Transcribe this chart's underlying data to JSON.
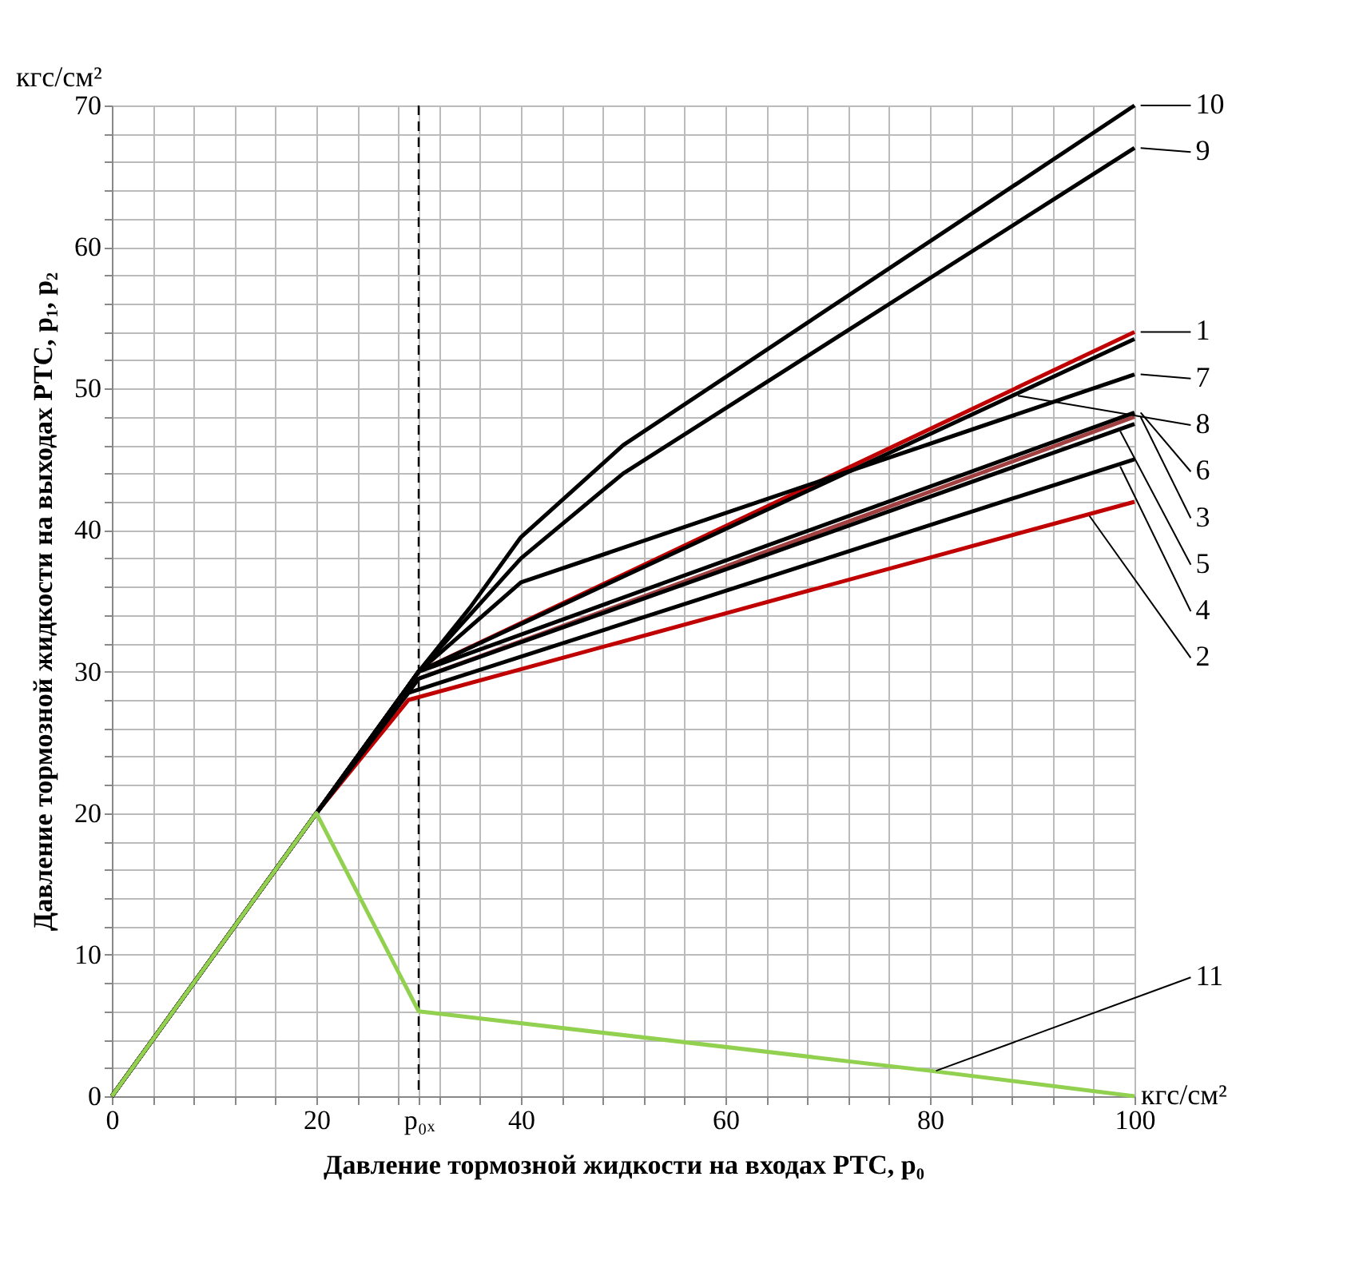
{
  "chart_data": {
    "type": "line",
    "xlabel": "Давление тормозной жидкости на входах РТС, p₀",
    "ylabel": "Давление тормозной жидкости на выходах РТС, p₁, p₂",
    "xlim": [
      0,
      100
    ],
    "ylim": [
      0,
      70
    ],
    "xticks": [
      0,
      {
        "value": 4,
        "label": null
      },
      {
        "value": 8,
        "label": null
      },
      {
        "value": 12,
        "label": null
      },
      {
        "value": 16,
        "label": null
      },
      20,
      {
        "value": 24,
        "label": null
      },
      {
        "value": 28,
        "label": null
      },
      {
        "value": 30,
        "label": "p₀ₓ"
      },
      {
        "value": 32,
        "label": null
      },
      {
        "value": 36,
        "label": null
      },
      40,
      {
        "value": 44,
        "label": null
      },
      {
        "value": 48,
        "label": null
      },
      {
        "value": 52,
        "label": null
      },
      {
        "value": 56,
        "label": null
      },
      60,
      {
        "value": 64,
        "label": null
      },
      {
        "value": 68,
        "label": null
      },
      {
        "value": 72,
        "label": null
      },
      {
        "value": 76,
        "label": null
      },
      80,
      {
        "value": 84,
        "label": null
      },
      {
        "value": 88,
        "label": null
      },
      {
        "value": 92,
        "label": null
      },
      {
        "value": 96,
        "label": null
      },
      100
    ],
    "yticks": [
      0,
      {
        "value": 2,
        "label": null
      },
      {
        "value": 4,
        "label": null
      },
      {
        "value": 6,
        "label": null
      },
      {
        "value": 8,
        "label": null
      },
      10,
      {
        "value": 12,
        "label": null
      },
      {
        "value": 14,
        "label": null
      },
      {
        "value": 16,
        "label": null
      },
      {
        "value": 18,
        "label": null
      },
      20,
      {
        "value": 22,
        "label": null
      },
      {
        "value": 24,
        "label": null
      },
      {
        "value": 26,
        "label": null
      },
      {
        "value": 28,
        "label": null
      },
      30,
      {
        "value": 32,
        "label": null
      },
      {
        "value": 34,
        "label": null
      },
      {
        "value": 36,
        "label": null
      },
      {
        "value": 38,
        "label": null
      },
      40,
      {
        "value": 42,
        "label": null
      },
      {
        "value": 44,
        "label": null
      },
      {
        "value": 46,
        "label": null
      },
      {
        "value": 48,
        "label": null
      },
      50,
      {
        "value": 52,
        "label": null
      },
      {
        "value": 54,
        "label": null
      },
      {
        "value": 56,
        "label": null
      },
      {
        "value": 58,
        "label": null
      },
      60,
      {
        "value": 62,
        "label": null
      },
      {
        "value": 64,
        "label": null
      },
      {
        "value": 66,
        "label": null
      },
      {
        "value": 68,
        "label": null
      },
      70
    ],
    "grid": true,
    "marker": "none",
    "line_style": "solid",
    "ref_lines": [
      {
        "axis": "x",
        "value": 30,
        "color": "#000000",
        "line_style": "dashed"
      }
    ],
    "annotations": [
      "кгс/см²",
      "кгс/см²",
      {
        "text": "10",
        "x": 100,
        "y": 70
      },
      {
        "text": "9",
        "x": 100,
        "y": 67
      },
      {
        "text": "8",
        "x": 88,
        "y": 49.5
      },
      {
        "text": "1",
        "x": 100,
        "y": 54
      },
      {
        "text": "7",
        "x": 100,
        "y": 51
      },
      {
        "text": "6",
        "x": 100,
        "y": 48.3
      },
      {
        "text": "3",
        "x": 100,
        "y": 48
      },
      {
        "text": "5",
        "x": 98,
        "y": 47
      },
      {
        "text": "4",
        "x": 98,
        "y": 44.5
      },
      {
        "text": "2",
        "x": 95,
        "y": 41
      },
      {
        "text": "11",
        "x": 80,
        "y": 1.8
      }
    ],
    "series": [
      {
        "color": "#c00000",
        "x": [
          0,
          20,
          30,
          100
        ],
        "values": [
          0,
          20,
          30,
          54
        ]
      },
      {
        "color": "#c00000",
        "x": [
          0,
          20,
          29,
          100
        ],
        "values": [
          0,
          20,
          28,
          42
        ]
      },
      {
        "color": "#a04040",
        "x": [
          0,
          20,
          30,
          100
        ],
        "values": [
          0,
          20,
          29.5,
          48
        ]
      },
      {
        "color": "#000000",
        "x": [
          0,
          20,
          29,
          100
        ],
        "values": [
          0,
          20,
          28.5,
          45
        ]
      },
      {
        "color": "#000000",
        "x": [
          0,
          20,
          30,
          100
        ],
        "values": [
          0,
          20,
          29.5,
          47.5
        ]
      },
      {
        "color": "#000000",
        "x": [
          0,
          20,
          30,
          100
        ],
        "values": [
          0,
          20,
          30,
          48.3
        ]
      },
      {
        "color": "#000000",
        "x": [
          0,
          20,
          30,
          40,
          100
        ],
        "values": [
          0,
          20,
          30,
          36.3,
          51
        ]
      },
      {
        "color": "#000000",
        "x": [
          0,
          20,
          30,
          100
        ],
        "values": [
          0,
          20,
          30,
          53.5
        ]
      },
      {
        "color": "#000000",
        "x": [
          0,
          20,
          30,
          40,
          50,
          100
        ],
        "values": [
          0,
          20,
          30,
          38,
          44,
          67
        ]
      },
      {
        "color": "#000000",
        "x": [
          0,
          20,
          30,
          35,
          40,
          50,
          100
        ],
        "values": [
          0,
          20,
          30,
          34.5,
          39.5,
          46,
          70
        ]
      },
      {
        "color": "#92d050",
        "x": [
          0,
          20,
          30,
          80,
          100
        ],
        "values": [
          0,
          20,
          6,
          1.8,
          0
        ]
      }
    ]
  }
}
